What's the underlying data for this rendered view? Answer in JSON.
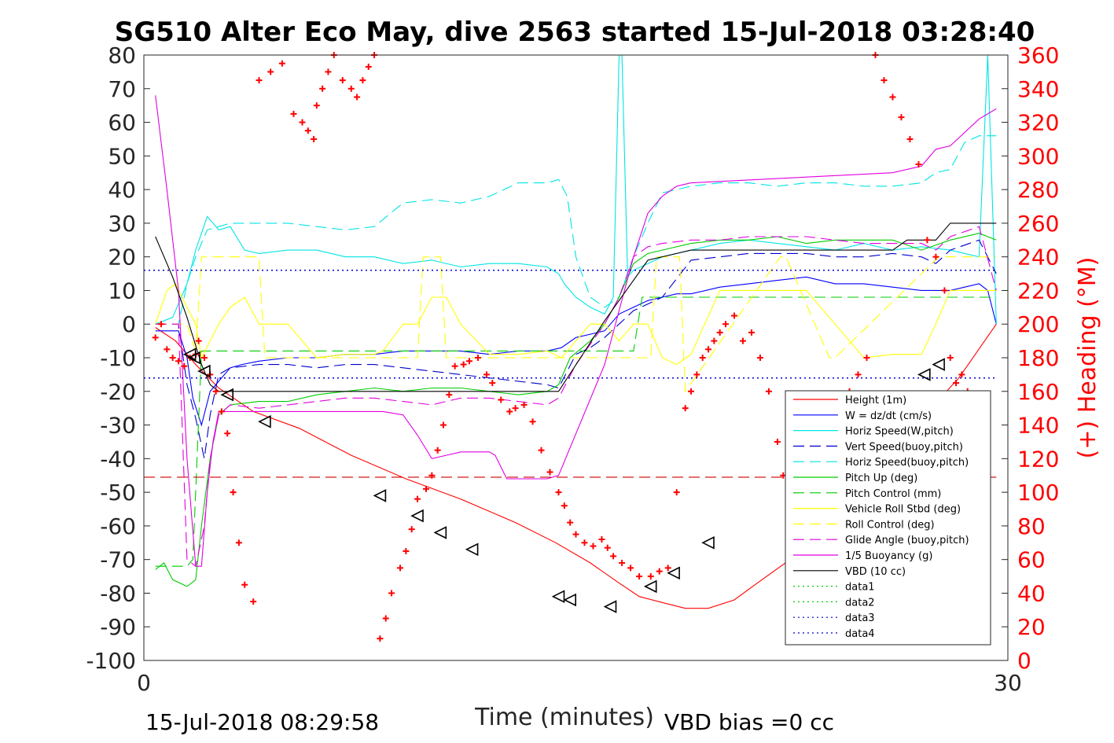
{
  "chart_data": {
    "type": "line",
    "title": "SG510 Alter Eco May, dive 2563 started 15-Jul-2018 03:28:40",
    "xlabel": "Time (minutes)",
    "ylabel": "",
    "y2label": "(+) Heading (°M)",
    "xlim": [
      0,
      30
    ],
    "ylim": [
      -100,
      80
    ],
    "y2lim": [
      0,
      360
    ],
    "xticks": [
      "0",
      "30"
    ],
    "yticks": [
      "80",
      "70",
      "60",
      "50",
      "40",
      "30",
      "20",
      "10",
      "0",
      "-10",
      "-20",
      "-30",
      "-40",
      "-50",
      "-60",
      "-70",
      "-80",
      "-90",
      "-100"
    ],
    "y2ticks": [
      "360",
      "340",
      "320",
      "300",
      "280",
      "260",
      "240",
      "220",
      "200",
      "180",
      "160",
      "140",
      "120",
      "100",
      "80",
      "60",
      "40",
      "20",
      "0"
    ],
    "footer_left": "15-Jul-2018 08:29:58",
    "footer_right": "VBD bias =0 cc",
    "legend_position": "bottom-right",
    "grid": false,
    "series": [
      {
        "name": "Height (1m)",
        "color": "#ff0000",
        "style": "solid",
        "x": [
          0.4,
          1.1,
          1.8,
          2.6,
          3.8,
          5.4,
          7.2,
          9.1,
          11.0,
          12.9,
          14.3,
          15.5,
          16.5,
          17.2,
          18.1,
          18.8,
          19.6,
          20.5,
          21.3,
          22.6,
          24.0,
          25.5,
          26.9,
          28.3,
          29.6
        ],
        "y": [
          -1,
          -5,
          -12,
          -19,
          -26,
          -31,
          -39,
          -46,
          -52,
          -59,
          -65,
          -71,
          -77,
          -81,
          -83,
          -84.5,
          -84.5,
          -82,
          -77,
          -69,
          -58,
          -44,
          -29,
          -16,
          0
        ]
      },
      {
        "name": "W = dz/dt (cm/s)",
        "color": "#0000ff",
        "style": "solid",
        "x": [
          0.4,
          1.2,
          1.5,
          1.7,
          2.0,
          2.3,
          2.6,
          3.0,
          3.4,
          4.0,
          5.0,
          6.0,
          7.0,
          8.0,
          9.0,
          10.0,
          11.0,
          12.0,
          13.0,
          14.0,
          14.5,
          15.0,
          15.5,
          16.0,
          16.5,
          17.0,
          17.5,
          18.0,
          18.5,
          19.0,
          20.0,
          21.0,
          22.0,
          23.0,
          24.0,
          25.0,
          26.0,
          27.0,
          28.0,
          28.5,
          29.0,
          29.3,
          29.6
        ],
        "y": [
          -2,
          -2,
          -10,
          -22,
          -30,
          -20,
          -17,
          -13,
          -12,
          -11,
          -10,
          -10,
          -9,
          -9,
          -8,
          -8,
          -8,
          -9,
          -8,
          -8,
          -7,
          -4,
          -3,
          -2,
          3,
          5,
          7,
          8,
          9,
          9,
          11,
          12,
          13,
          14,
          12,
          12,
          11,
          10,
          10,
          11,
          12,
          10,
          0
        ]
      },
      {
        "name": "Horiz Speed(W,pitch)",
        "color": "#00e5e5",
        "style": "solid",
        "x": [
          0.4,
          1.0,
          1.5,
          1.8,
          2.2,
          2.6,
          3.0,
          3.5,
          4.0,
          5.0,
          6.0,
          7.0,
          8.0,
          9.0,
          10.0,
          11.0,
          12.0,
          13.0,
          14.0,
          14.4,
          14.6,
          15.0,
          15.5,
          16.0,
          16.3,
          16.5,
          16.6,
          16.8,
          17.0,
          17.5,
          18.0,
          19.0,
          20.0,
          21.0,
          22.0,
          23.0,
          24.0,
          25.0,
          26.0,
          27.0,
          28.0,
          29.0,
          29.3,
          29.6
        ],
        "y": [
          0,
          2,
          12,
          22,
          32,
          28,
          29,
          22,
          21,
          22,
          22,
          20,
          20,
          18,
          19,
          17,
          18,
          18,
          17,
          15,
          12,
          8,
          5,
          3,
          8,
          80,
          80,
          14,
          16,
          18,
          20,
          22,
          24,
          25,
          24,
          23,
          22,
          24,
          22,
          23,
          22,
          20,
          80,
          0
        ]
      },
      {
        "name": "Vert Speed(buoy,pitch)",
        "color": "#0000cc",
        "style": "dashed",
        "x": [
          0.4,
          1.2,
          1.5,
          1.8,
          2.1,
          2.3,
          2.6,
          3.0,
          4.0,
          5.0,
          6.0,
          7.0,
          8.0,
          9.0,
          10.0,
          11.0,
          12.0,
          13.0,
          14.0,
          14.4,
          15.0,
          15.5,
          16.0,
          16.5,
          17.0,
          17.5,
          18.0,
          19.0,
          20.0,
          21.0,
          22.0,
          23.0,
          24.0,
          25.0,
          26.0,
          27.0,
          27.5,
          28.0,
          29.0,
          29.6
        ],
        "y": [
          0,
          0,
          -18,
          -28,
          -40,
          -27,
          -15,
          -13,
          -12,
          -12,
          -13,
          -12,
          -12,
          -13,
          -14,
          -15,
          -16,
          -17,
          -18,
          -19,
          -9,
          -7,
          -4,
          0,
          4,
          6,
          8,
          19,
          20,
          21,
          21,
          21,
          20,
          20,
          21,
          20,
          18,
          22,
          25,
          15
        ]
      },
      {
        "name": "Horiz Speed(buoy,pitch)",
        "color": "#00e5e5",
        "style": "dashed",
        "x": [
          0.4,
          1.2,
          1.5,
          1.8,
          2.2,
          2.6,
          3.0,
          4.0,
          5.0,
          6.0,
          7.0,
          8.0,
          9.0,
          10.0,
          11.0,
          12.0,
          13.0,
          14.0,
          14.4,
          14.7,
          15.0,
          15.5,
          16.0,
          16.5,
          17.0,
          17.5,
          18.0,
          19.0,
          20.0,
          21.0,
          22.0,
          23.0,
          24.0,
          25.0,
          26.0,
          27.0,
          27.5,
          28.0,
          28.5,
          29.0,
          29.6
        ],
        "y": [
          0,
          0,
          12,
          20,
          28,
          29,
          30,
          30,
          30,
          29,
          28,
          29,
          36,
          37,
          36,
          38,
          42,
          42,
          43,
          38,
          20,
          8,
          5,
          8,
          20,
          30,
          39,
          41,
          42,
          42,
          41,
          42,
          42,
          41,
          41,
          42,
          45,
          46,
          54,
          56,
          56
        ]
      },
      {
        "name": "Pitch Up (deg)",
        "color": "#00cc00",
        "style": "solid",
        "x": [
          0.4,
          0.7,
          1.0,
          1.5,
          1.8,
          2.0,
          2.3,
          2.6,
          3.0,
          4.0,
          5.0,
          6.0,
          7.0,
          8.0,
          9.0,
          10.0,
          11.0,
          12.0,
          13.0,
          14.0,
          14.4,
          14.8,
          15.5,
          16.0,
          16.5,
          17.0,
          17.5,
          18.0,
          19.0,
          20.0,
          21.0,
          22.0,
          23.0,
          24.0,
          25.0,
          26.0,
          27.0,
          28.0,
          29.0,
          29.6
        ],
        "y": [
          -73,
          -71,
          -76,
          -78,
          -76,
          -60,
          -40,
          -27,
          -24,
          -23,
          -23,
          -21,
          -20,
          -19,
          -20,
          -19,
          -19,
          -20,
          -21,
          -20,
          -18,
          -10,
          -5,
          0,
          8,
          18,
          21,
          22,
          24,
          25,
          25,
          26,
          24,
          25,
          25,
          25,
          22,
          25,
          27,
          25
        ]
      },
      {
        "name": "Pitch Control (mm)",
        "color": "#00cc00",
        "style": "dashed",
        "x": [
          0.4,
          1.2,
          1.5,
          1.7,
          2.0,
          2.3,
          2.6,
          14.4,
          14.6,
          17.0,
          17.3,
          29.6
        ],
        "y": [
          -72,
          -72,
          -72,
          -70,
          -8,
          -8,
          -8,
          -8,
          -8,
          -8,
          8,
          8
        ]
      },
      {
        "name": "Vehicle Roll Stbd (deg)",
        "color": "#ffff00",
        "style": "solid",
        "x": [
          0.4,
          0.8,
          1.1,
          1.5,
          1.8,
          2.0,
          2.3,
          2.6,
          3.0,
          3.5,
          4.0,
          5.0,
          6.0,
          7.0,
          8.0,
          8.3,
          9.0,
          9.5,
          10.0,
          10.5,
          11.0,
          12.0,
          13.0,
          14.0,
          14.5,
          15.0,
          15.5,
          16.0,
          16.5,
          17.0,
          17.5,
          18.0,
          18.5,
          19.0,
          20.0,
          21.0,
          22.0,
          23.0,
          24.0,
          25.0,
          26.0,
          27.0,
          27.5,
          28.0,
          29.0,
          29.6
        ],
        "y": [
          0,
          10,
          12,
          5,
          0,
          -10,
          -5,
          0,
          5,
          8,
          0,
          0,
          -10,
          -9,
          -9,
          -8,
          0,
          0,
          8,
          8,
          0,
          -9,
          -9,
          -8,
          -10,
          -5,
          0,
          0,
          -5,
          0,
          0,
          -10,
          -12,
          -9,
          10,
          10,
          10,
          10,
          0,
          -10,
          -9,
          -9,
          0,
          10,
          10,
          10
        ]
      },
      {
        "name": "Roll Control (deg)",
        "color": "#ffff00",
        "style": "dashed",
        "x": [
          0.4,
          1.5,
          1.8,
          2.0,
          2.6,
          4.0,
          4.2,
          7.0,
          7.2,
          9.5,
          9.7,
          10.3,
          10.5,
          13.0,
          13.2,
          17.6,
          17.8,
          18.6,
          18.8,
          22.1,
          22.3,
          23.8,
          24.0,
          27.6,
          27.8,
          29.6
        ],
        "y": [
          0,
          0,
          -8,
          20,
          20,
          20,
          -10,
          -10,
          -10,
          -10,
          20,
          20,
          -10,
          -10,
          -10,
          -10,
          20,
          20,
          -20,
          20,
          20,
          -10,
          -10,
          20,
          20,
          20
        ]
      },
      {
        "name": "Glide Angle (buoy,pitch)",
        "color": "#e000e0",
        "style": "dashed",
        "x": [
          0.4,
          1.2,
          1.5,
          1.8,
          2.1,
          2.3,
          2.6,
          3.0,
          4.0,
          5.0,
          6.0,
          7.0,
          8.0,
          9.0,
          10.0,
          11.0,
          12.0,
          13.0,
          14.0,
          14.4,
          15.0,
          15.5,
          16.0,
          16.5,
          17.0,
          17.5,
          18.0,
          19.0,
          20.0,
          21.0,
          22.0,
          23.0,
          24.0,
          25.0,
          26.0,
          27.0,
          27.5,
          28.0,
          29.0,
          29.6
        ],
        "y": [
          0,
          0,
          -70,
          -72,
          -60,
          -40,
          -27,
          -24,
          -25,
          -24,
          -23,
          -22,
          -22,
          -23,
          -24,
          -22,
          -22,
          -23,
          -24,
          -22,
          -12,
          -6,
          0,
          8,
          20,
          23,
          24,
          25,
          25,
          26,
          26,
          26,
          25,
          24,
          24,
          24,
          22,
          26,
          29,
          10
        ]
      },
      {
        "name": "1/5 Buoyancy (g)",
        "color": "#e000e0",
        "style": "solid",
        "x": [
          0.4,
          0.8,
          1.2,
          1.5,
          1.8,
          2.0,
          2.2,
          2.4,
          2.6,
          3.0,
          4.0,
          5.0,
          6.0,
          7.0,
          8.0,
          8.3,
          9.0,
          9.5,
          10.0,
          10.5,
          11.0,
          11.5,
          12.0,
          12.2,
          12.6,
          13.0,
          14.0,
          14.4,
          16.0,
          17.0,
          17.5,
          18.0,
          18.5,
          19.0,
          26.0,
          27.0,
          27.5,
          28.0,
          29.0,
          29.6
        ],
        "y": [
          68,
          40,
          10,
          -40,
          -72,
          -72,
          -50,
          -35,
          -26,
          -26,
          -26,
          -26,
          -26,
          -26,
          -26,
          -26,
          -27,
          -33,
          -40,
          -39,
          -38,
          -38,
          -38,
          -39,
          -46,
          -46,
          -46,
          -45,
          -12,
          20,
          33,
          38,
          41,
          42,
          45,
          47,
          52,
          53,
          61,
          64
        ]
      },
      {
        "name": "VBD (10 cc)",
        "color": "#000000",
        "style": "solid",
        "x": [
          0.4,
          1.0,
          1.5,
          2.0,
          2.3,
          2.6,
          3.0,
          14.4,
          16.0,
          17.5,
          18.5,
          19.0,
          26.0,
          26.5,
          27.5,
          28.0,
          29.6
        ],
        "y": [
          26,
          14,
          2,
          -12,
          -18,
          -20,
          -20,
          -20,
          1,
          19,
          21,
          22,
          22,
          25,
          25,
          30,
          30
        ]
      },
      {
        "name": "data1",
        "color": "#00cc00",
        "style": "dotted",
        "x": [],
        "y": []
      },
      {
        "name": "data2",
        "color": "#00cc00",
        "style": "dotted",
        "x": [],
        "y": []
      },
      {
        "name": "data3",
        "color": "#0000cc",
        "style": "dotted",
        "x": [
          0,
          29.6
        ],
        "y": [
          16,
          16
        ]
      },
      {
        "name": "data4",
        "color": "#0000cc",
        "style": "dotted",
        "x": [
          0,
          29.6
        ],
        "y": [
          -16,
          -16
        ]
      }
    ],
    "extra_lines": [
      {
        "color": "#cc0000",
        "style": "dashed",
        "x": [
          0,
          29.6
        ],
        "y": [
          -45.5,
          -45.5
        ]
      }
    ],
    "heading_points": {
      "color": "#ff0000",
      "marker": "+",
      "axis": "right",
      "x": [
        0.4,
        0.6,
        0.8,
        1.0,
        1.2,
        1.4,
        1.6,
        1.8,
        1.9,
        2.1,
        2.3,
        2.5,
        2.7,
        2.9,
        3.1,
        3.3,
        3.5,
        3.8,
        4.0,
        4.4,
        4.8,
        5.2,
        5.5,
        5.7,
        5.9,
        6.0,
        6.2,
        6.4,
        6.6,
        6.9,
        7.2,
        7.4,
        7.6,
        7.8,
        8.0,
        8.2,
        8.4,
        8.6,
        8.9,
        9.1,
        9.3,
        9.5,
        9.8,
        10.0,
        10.2,
        10.4,
        10.6,
        10.8,
        11.1,
        11.3,
        11.6,
        11.9,
        12.1,
        12.4,
        12.7,
        12.9,
        13.2,
        13.5,
        13.8,
        14.1,
        14.4,
        14.6,
        14.8,
        15.0,
        15.3,
        15.6,
        15.9,
        16.1,
        16.3,
        16.6,
        16.9,
        17.2,
        17.6,
        17.9,
        18.2,
        18.5,
        18.8,
        19.0,
        19.2,
        19.4,
        19.6,
        19.8,
        20.0,
        20.2,
        20.5,
        20.8,
        21.1,
        21.4,
        21.7,
        22.0,
        22.2,
        22.4,
        22.7,
        23.0,
        23.3,
        23.6,
        23.9,
        24.2,
        24.5,
        24.8,
        25.1,
        25.4,
        25.7,
        26.0,
        26.3,
        26.6,
        26.9,
        27.2,
        27.5,
        27.8,
        28.0,
        28.2,
        28.4,
        28.6,
        28.8
      ],
      "y": [
        192,
        200,
        185,
        180,
        178,
        175,
        180,
        182,
        190,
        180,
        170,
        160,
        148,
        135,
        100,
        70,
        45,
        35,
        345,
        350,
        355,
        325,
        320,
        315,
        310,
        330,
        340,
        350,
        360,
        345,
        340,
        335,
        345,
        353,
        360,
        13,
        25,
        40,
        55,
        65,
        78,
        96,
        102,
        110,
        125,
        140,
        158,
        175,
        176,
        178,
        180,
        170,
        165,
        155,
        148,
        150,
        152,
        142,
        125,
        112,
        100,
        92,
        82,
        75,
        70,
        68,
        72,
        67,
        62,
        58,
        55,
        50,
        50,
        53,
        55,
        100,
        150,
        160,
        170,
        180,
        185,
        190,
        195,
        200,
        205,
        190,
        195,
        180,
        160,
        130,
        110,
        55,
        45,
        40,
        35,
        27,
        40,
        155,
        160,
        170,
        180,
        360,
        345,
        335,
        323,
        310,
        295,
        250,
        240,
        220,
        180,
        165,
        170,
        160,
        100
      ]
    },
    "triangle_markers": {
      "color": "#000000",
      "x": [
        1.6,
        1.75,
        2.1,
        2.9,
        4.2,
        8.2,
        9.5,
        10.3,
        11.4,
        14.4,
        14.8,
        16.2,
        17.6,
        18.4,
        19.6,
        27.1,
        27.6
      ],
      "y": [
        -9,
        -10,
        -14,
        -21,
        -29,
        -51,
        -57,
        -62,
        -67,
        -81,
        -82,
        -84,
        -78,
        -74,
        -65,
        -15,
        -12
      ]
    }
  }
}
